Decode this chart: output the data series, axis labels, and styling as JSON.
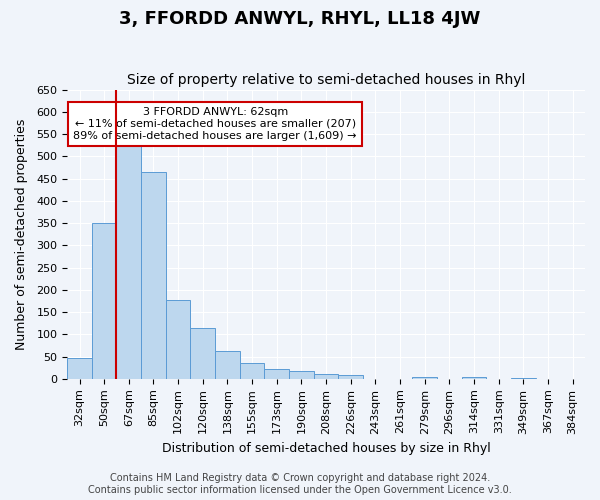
{
  "title": "3, FFORDD ANWYL, RHYL, LL18 4JW",
  "subtitle": "Size of property relative to semi-detached houses in Rhyl",
  "xlabel": "Distribution of semi-detached houses by size in Rhyl",
  "ylabel": "Number of semi-detached properties",
  "bin_labels": [
    "32sqm",
    "50sqm",
    "67sqm",
    "85sqm",
    "102sqm",
    "120sqm",
    "138sqm",
    "155sqm",
    "173sqm",
    "190sqm",
    "208sqm",
    "226sqm",
    "243sqm",
    "261sqm",
    "279sqm",
    "296sqm",
    "314sqm",
    "331sqm",
    "349sqm",
    "367sqm",
    "384sqm"
  ],
  "bar_heights": [
    47,
    350,
    535,
    465,
    178,
    115,
    62,
    35,
    22,
    18,
    10,
    8,
    0,
    0,
    5,
    0,
    3,
    0,
    2,
    0,
    0
  ],
  "bar_color": "#bdd7ee",
  "bar_edge_color": "#5b9bd5",
  "property_line_x": 2,
  "property_line_label": "3 FFORDD ANWYL: 62sqm",
  "annotation_line1": "← 11% of semi-detached houses are smaller (207)",
  "annotation_line2": "89% of semi-detached houses are larger (1,609) →",
  "annotation_box_color": "#ffffff",
  "annotation_box_edgecolor": "#cc0000",
  "vline_color": "#cc0000",
  "ylim": [
    0,
    650
  ],
  "yticks": [
    0,
    50,
    100,
    150,
    200,
    250,
    300,
    350,
    400,
    450,
    500,
    550,
    600,
    650
  ],
  "footer_line1": "Contains HM Land Registry data © Crown copyright and database right 2024.",
  "footer_line2": "Contains public sector information licensed under the Open Government Licence v3.0.",
  "bg_color": "#f0f4fa",
  "plot_bg_color": "#f0f4fa",
  "title_fontsize": 13,
  "subtitle_fontsize": 10,
  "axis_label_fontsize": 9,
  "tick_fontsize": 8,
  "footer_fontsize": 7
}
